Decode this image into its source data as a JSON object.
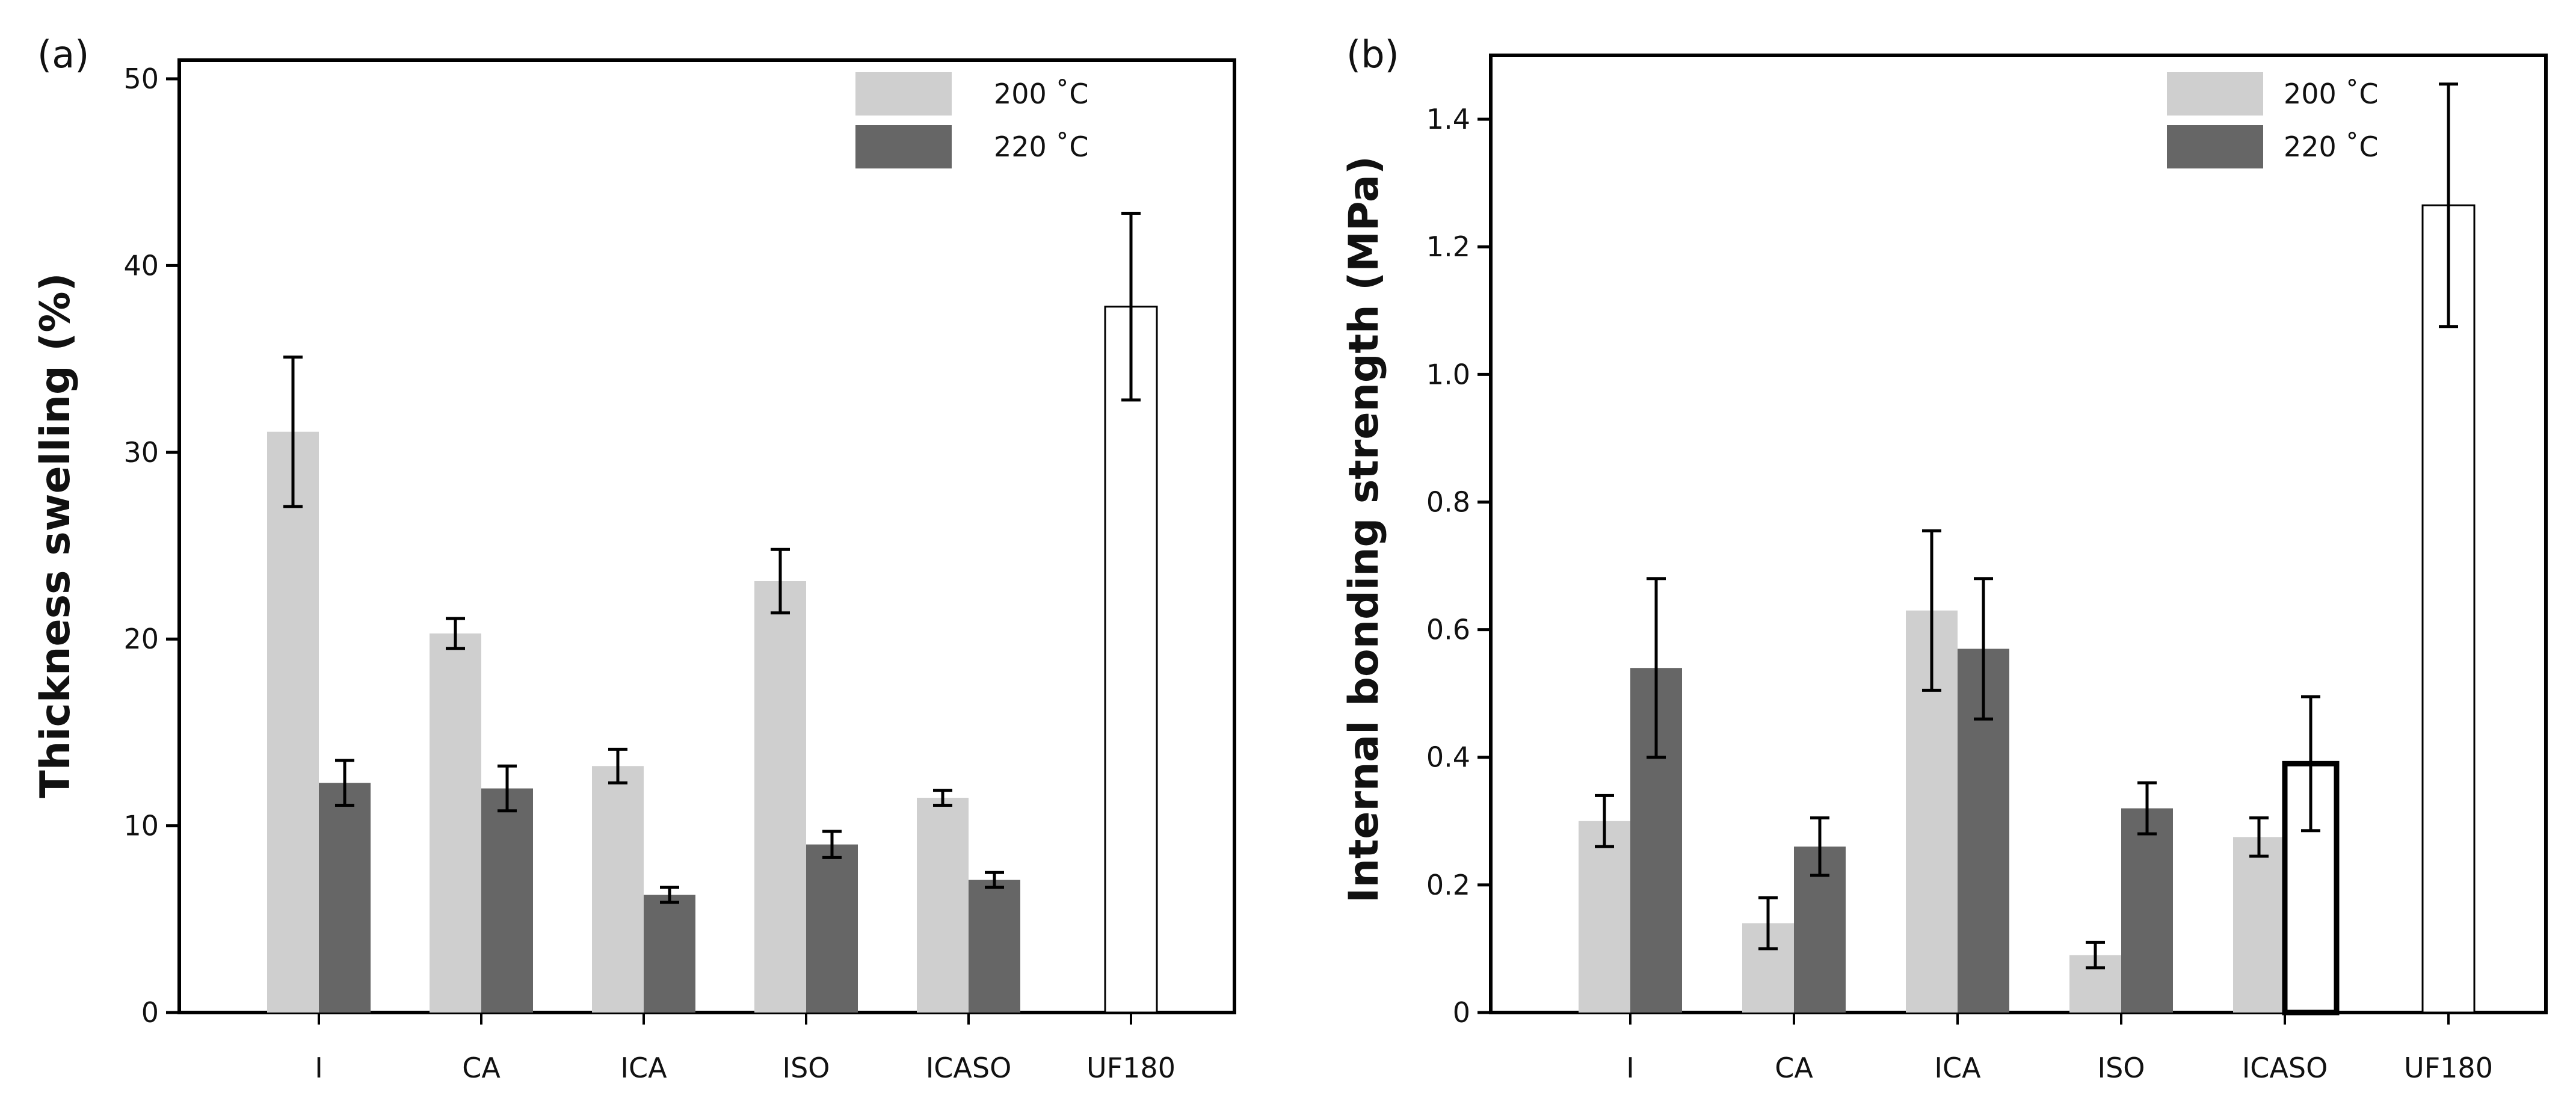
{
  "chart_data": [
    {
      "type": "bar",
      "panel_label": "(a)",
      "title": "",
      "xlabel": "",
      "ylabel": "Thickness swelling (%)",
      "ylim": [
        0,
        51
      ],
      "yticks": [
        0,
        10,
        20,
        30,
        40,
        50
      ],
      "ytick_labels": [
        "0",
        "10",
        "20",
        "30",
        "40",
        "50"
      ],
      "categories": [
        "I",
        "CA",
        "ICA",
        "ISO",
        "ICASO",
        "UF180"
      ],
      "legend_position": "top-right",
      "series": [
        {
          "name": "200 ˚C",
          "color": "#cfcfcf",
          "values": [
            31.1,
            20.3,
            13.2,
            23.1,
            11.5,
            null
          ],
          "errors": [
            4.0,
            0.8,
            0.9,
            1.7,
            0.4,
            null
          ]
        },
        {
          "name": "220 ˚C",
          "color": "#666666",
          "values": [
            12.3,
            12.0,
            6.3,
            9.0,
            7.1,
            null
          ],
          "errors": [
            1.2,
            1.2,
            0.4,
            0.7,
            0.4,
            null
          ]
        },
        {
          "name": "UF180",
          "color": "#ffffff",
          "in_legend": false,
          "values": [
            null,
            null,
            null,
            null,
            null,
            37.8
          ],
          "errors": [
            null,
            null,
            null,
            null,
            null,
            5.0
          ]
        }
      ]
    },
    {
      "type": "bar",
      "panel_label": "(b)",
      "title": "",
      "xlabel": "",
      "ylabel": "Internal bonding strength (MPa)",
      "ylim": [
        0,
        1.5
      ],
      "yticks": [
        0,
        0.2,
        0.4,
        0.6,
        0.8,
        1.0,
        1.2,
        1.4
      ],
      "ytick_labels": [
        "0",
        "0.2",
        "0.4",
        "0.6",
        "0.8",
        "1.0",
        "1.2",
        "1.4"
      ],
      "categories": [
        "I",
        "CA",
        "ICA",
        "ISO",
        "ICASO",
        "UF180"
      ],
      "legend_position": "top-right",
      "series": [
        {
          "name": "200 ˚C",
          "color": "#cfcfcf",
          "values": [
            0.3,
            0.14,
            0.63,
            0.09,
            0.275,
            null
          ],
          "errors": [
            0.04,
            0.04,
            0.125,
            0.02,
            0.03,
            null
          ]
        },
        {
          "name": "220 ˚C",
          "color": "#666666",
          "values": [
            0.54,
            0.26,
            0.57,
            0.32,
            null,
            null
          ],
          "errors": [
            0.14,
            0.045,
            0.11,
            0.04,
            null,
            null
          ]
        },
        {
          "name": "ICASO 220 (outlined)",
          "color": "#ffffff",
          "in_legend": false,
          "bold_outline": true,
          "values": [
            null,
            null,
            null,
            null,
            0.39,
            null
          ],
          "errors": [
            null,
            null,
            null,
            null,
            0.105,
            null
          ]
        },
        {
          "name": "UF180",
          "color": "#ffffff",
          "in_legend": false,
          "values": [
            null,
            null,
            null,
            null,
            null,
            1.265
          ],
          "errors": [
            null,
            null,
            null,
            null,
            null,
            0.19
          ]
        }
      ]
    }
  ]
}
